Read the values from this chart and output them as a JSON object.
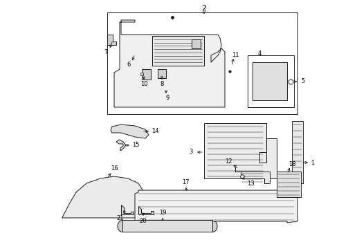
{
  "bg_color": "#ffffff",
  "line_color": "#1a1a1a",
  "label_color": "#000000",
  "fig_width": 4.9,
  "fig_height": 3.6,
  "dpi": 100,
  "lw": 0.7,
  "fs": 6.0
}
